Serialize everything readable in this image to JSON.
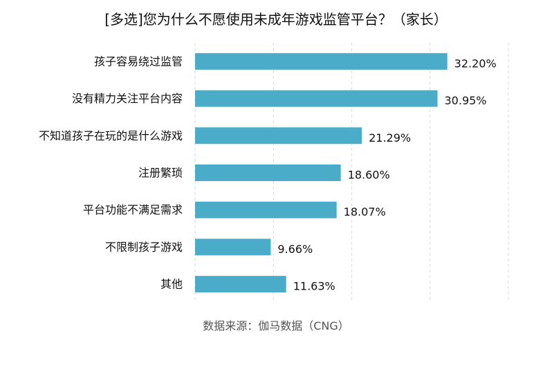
{
  "title": "[多选]您为什么不愿使用未成年游戏监管平台？（家长）",
  "source": "数据来源：伽马数据（CNG）",
  "colors": {
    "bar": "#4aacc9",
    "grid": "#d9d9d9",
    "text": "#111111",
    "source_text": "#555555"
  },
  "chart_data": {
    "type": "bar",
    "orientation": "horizontal",
    "categories": [
      "孩子容易绕过监管",
      "没有精力关注平台内容",
      "不知道孩子在玩的是什么游戏",
      "注册繁琐",
      "平台功能不满足需求",
      "不限制孩子游戏",
      "其他"
    ],
    "values": [
      32.2,
      30.95,
      21.29,
      18.6,
      18.07,
      9.66,
      11.63
    ],
    "value_labels": [
      "32.20%",
      "30.95%",
      "21.29%",
      "18.60%",
      "18.07%",
      "9.66%",
      "11.63%"
    ],
    "unit": "%",
    "xlim": [
      0,
      40
    ],
    "grid": true,
    "grid_style": "dashed-vertical",
    "legend": "none"
  }
}
